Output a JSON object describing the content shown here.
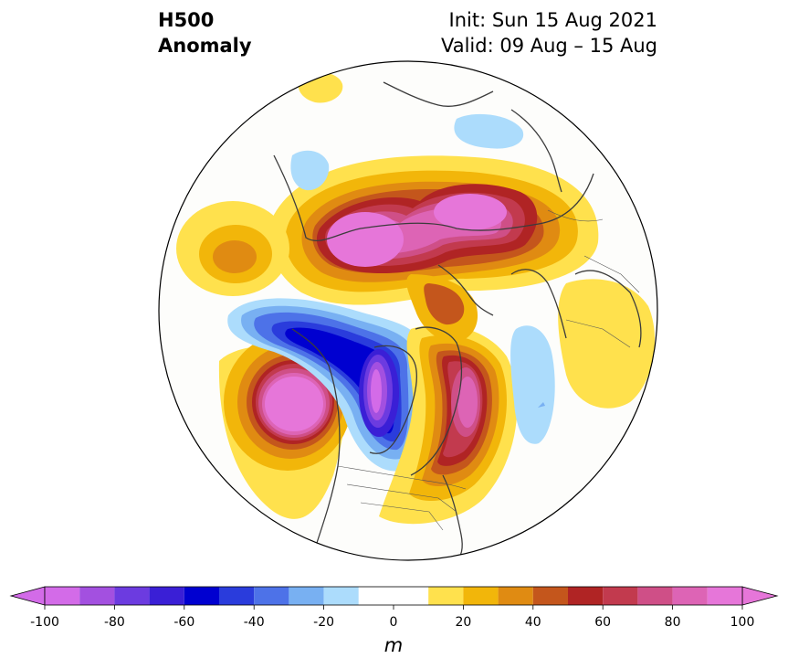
{
  "header": {
    "title_line1": "H500",
    "title_line2": "Anomaly",
    "init_label": "Init: Sun 15 Aug 2021",
    "valid_label": "Valid: 09 Aug – 15 Aug"
  },
  "colorbar": {
    "unit": "m",
    "ticks": [
      "-100",
      "-80",
      "-60",
      "-40",
      "-20",
      "0",
      "20",
      "40",
      "60",
      "80",
      "100"
    ],
    "tick_values": [
      -100,
      -80,
      -60,
      -40,
      -20,
      0,
      20,
      40,
      60,
      80,
      100
    ],
    "levels": [
      -100,
      -90,
      -80,
      -70,
      -60,
      -50,
      -40,
      -30,
      -20,
      -10,
      10,
      20,
      30,
      40,
      50,
      60,
      70,
      80,
      90,
      100
    ],
    "colors": [
      "#d36be8",
      "#a350e0",
      "#6c3be0",
      "#3a1fd6",
      "#0000d0",
      "#2a3cdc",
      "#4d72e8",
      "#78b0f2",
      "#acdcfc",
      "#ffffff",
      "#ffe14d",
      "#f2b60a",
      "#e08b12",
      "#c4561c",
      "#b02424",
      "#c23a4e",
      "#cf4f87",
      "#dd64b5",
      "#e676d9"
    ],
    "extend_low_color": "#d36be8",
    "extend_high_color": "#e676d9"
  },
  "map": {
    "projection": "north-polar-stereographic",
    "field": "500 hPa geopotential height anomaly"
  }
}
